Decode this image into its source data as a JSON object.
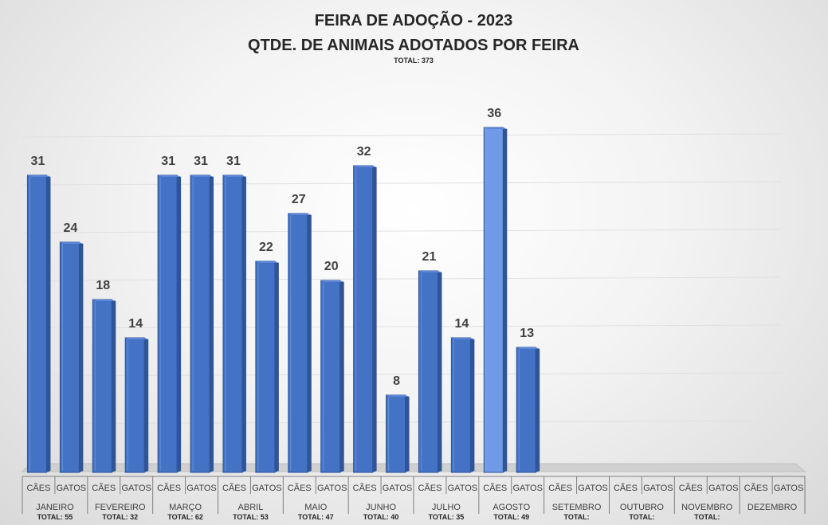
{
  "chart_data": {
    "type": "bar",
    "title": "FEIRA DE ADOÇÃO - 2023",
    "subtitle": "QTDE. DE ANIMAIS ADOTADOS POR FEIRA",
    "total_label": "TOTAL: 373",
    "ylim": [
      0,
      40
    ],
    "grid": true,
    "sub_categories": [
      "CÃES",
      "GATOS"
    ],
    "categories": [
      {
        "month": "JANEIRO",
        "total": "TOTAL: 55",
        "values": [
          31,
          24
        ]
      },
      {
        "month": "FEVEREIRO",
        "total": "TOTAL: 32",
        "values": [
          18,
          14
        ]
      },
      {
        "month": "MARÇO",
        "total": "TOTAL: 62",
        "values": [
          31,
          31
        ]
      },
      {
        "month": "ABRIL",
        "total": "TOTAL: 53",
        "values": [
          31,
          22
        ]
      },
      {
        "month": "MAIO",
        "total": "TOTAL: 47",
        "values": [
          27,
          20
        ]
      },
      {
        "month": "JUNHO",
        "total": "TOTAL: 40",
        "values": [
          32,
          8
        ]
      },
      {
        "month": "JULHO",
        "total": "TOTAL: 35",
        "values": [
          21,
          14
        ]
      },
      {
        "month": "AGOSTO",
        "total": "TOTAL: 49",
        "values": [
          36,
          13
        ]
      },
      {
        "month": "SETEMBRO",
        "total": "TOTAL:",
        "values": [
          null,
          null
        ]
      },
      {
        "month": "OUTUBRO",
        "total": "TOTAL:",
        "values": [
          null,
          null
        ]
      },
      {
        "month": "NOVEMBRO",
        "total": "TOTAL:",
        "values": [
          null,
          null
        ]
      },
      {
        "month": "DEZEMBRO",
        "total": "",
        "values": [
          null,
          null
        ]
      }
    ],
    "colors": {
      "bar_front": "#4472c4",
      "bar_side": "#2f5597",
      "bar_top": "#5b85d6",
      "bar_highlight": "#6f9ae8",
      "grid": "#e0e0e0",
      "axis": "#7f7f7f"
    }
  }
}
